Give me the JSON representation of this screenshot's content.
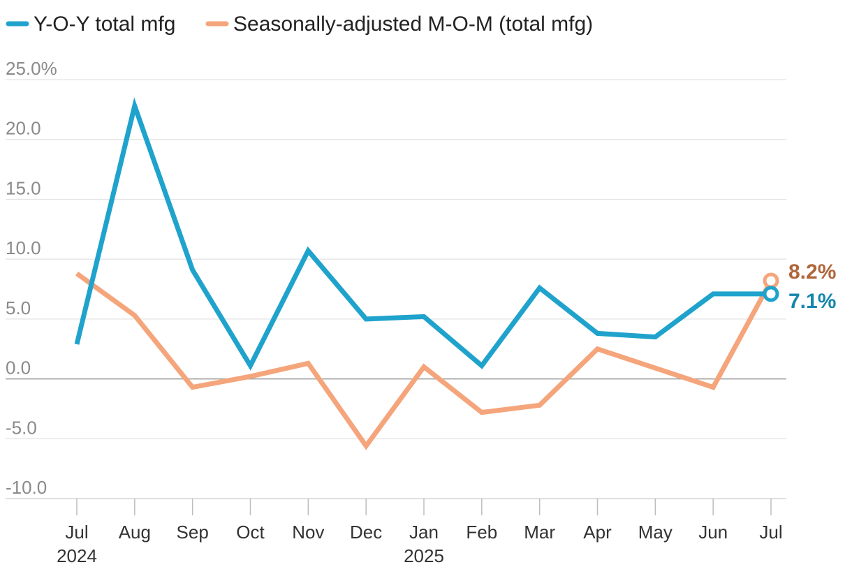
{
  "chart_data": {
    "type": "line",
    "title": "",
    "xlabel": "",
    "ylabel": "",
    "ylim": [
      -10,
      25
    ],
    "grid": true,
    "legend_position": "top-left",
    "y_ticks": [
      {
        "value": 25,
        "label": "25.0%"
      },
      {
        "value": 20,
        "label": "20.0"
      },
      {
        "value": 15,
        "label": "15.0"
      },
      {
        "value": 10,
        "label": "10.0"
      },
      {
        "value": 5,
        "label": "5.0"
      },
      {
        "value": 0,
        "label": "0.0"
      },
      {
        "value": -5,
        "label": "-5.0"
      },
      {
        "value": -10,
        "label": "-10.0"
      }
    ],
    "categories": [
      "Jul",
      "Aug",
      "Sep",
      "Oct",
      "Nov",
      "Dec",
      "Jan",
      "Feb",
      "Mar",
      "Apr",
      "May",
      "Jun",
      "Jul"
    ],
    "year_labels": [
      {
        "index": 0,
        "label": "2024"
      },
      {
        "index": 6,
        "label": "2025"
      }
    ],
    "series": [
      {
        "name": "Y-O-Y total mfg",
        "color": "#1fa3cc",
        "label_color": "#1586ad",
        "values": [
          2.9,
          22.8,
          9.1,
          1.1,
          10.7,
          5.0,
          5.2,
          1.1,
          7.6,
          3.8,
          3.5,
          7.1,
          7.1
        ],
        "end_label": "7.1%"
      },
      {
        "name": "Seasonally-adjusted M-O-M (total mfg)",
        "color": "#f5a57b",
        "label_color": "#b0663b",
        "values": [
          8.8,
          5.3,
          -0.7,
          0.2,
          1.3,
          -5.6,
          1.0,
          -2.8,
          -2.2,
          2.5,
          0.9,
          -0.7,
          8.2
        ],
        "end_label": "8.2%"
      }
    ]
  }
}
